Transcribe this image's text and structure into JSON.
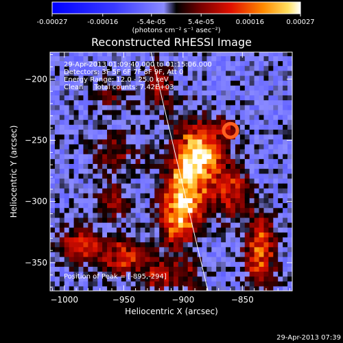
{
  "chart_data": {
    "type": "heatmap",
    "title": "Reconstructed RHESSI Image",
    "xlabel": "Heliocentric X (arcsec)",
    "ylabel": "Heliocentric Y (arcsec)",
    "xlim": [
      -1012,
      -808
    ],
    "ylim": [
      -373,
      -178
    ],
    "x_ticks": [
      -1000,
      -950,
      -900,
      -850
    ],
    "y_ticks": [
      -200,
      -250,
      -300,
      -350
    ],
    "colorbar": {
      "min": -0.00027,
      "max": 0.00027,
      "tick_values": [
        -0.00027,
        -0.00016,
        -5.4e-05,
        5.4e-05,
        0.00016,
        0.00027
      ],
      "tick_labels": [
        "-0.00027",
        "-0.00016",
        "-5.4e-05",
        "5.4e-05",
        "0.00016",
        "0.00027"
      ],
      "units_label": "(photons cm⁻² s⁻¹ asec⁻²)"
    },
    "annotations": [
      "29-Apr-2013 01:09:40.000 to 01:15:06.000",
      "Detectors: 3F 5F 6F 7F 8F 9F, Att 0",
      "Energy Range: 12.0 - 25.0 keV",
      "Clean     Total counts: 7.42E+03"
    ],
    "peak_label": "Position of Peak = [-895,-294]",
    "peak": [
      -895,
      -294
    ],
    "limb_line": [
      [
        -927,
        -178
      ],
      [
        -879,
        -373
      ]
    ],
    "hot_regions": [
      {
        "x": -893,
        "y": -275,
        "sx": 12,
        "sy": 25,
        "amp": 0.00027
      },
      {
        "x": -905,
        "y": -310,
        "sx": 10,
        "sy": 18,
        "amp": 0.00022
      },
      {
        "x": -880,
        "y": -260,
        "sx": 10,
        "sy": 12,
        "amp": 0.00018
      },
      {
        "x": -860,
        "y": -290,
        "sx": 10,
        "sy": 15,
        "amp": 0.00015
      },
      {
        "x": -835,
        "y": -340,
        "sx": 9,
        "sy": 20,
        "amp": 0.0002
      },
      {
        "x": -985,
        "y": -335,
        "sx": 12,
        "sy": 10,
        "amp": 0.00016
      },
      {
        "x": -950,
        "y": -345,
        "sx": 12,
        "sy": 10,
        "amp": 0.00017
      },
      {
        "x": -920,
        "y": -360,
        "sx": 10,
        "sy": 10,
        "amp": 0.00012
      },
      {
        "x": -955,
        "y": -260,
        "sx": 15,
        "sy": 12,
        "amp": 8e-05
      },
      {
        "x": -960,
        "y": -210,
        "sx": 10,
        "sy": 10,
        "amp": 7e-05
      },
      {
        "x": -920,
        "y": -205,
        "sx": 8,
        "sy": 12,
        "amp": 0.00012
      },
      {
        "x": -865,
        "y": -240,
        "sx": 6,
        "sy": 6,
        "amp": 0.00013
      },
      {
        "x": -960,
        "y": -300,
        "sx": 12,
        "sy": 10,
        "amp": 9e-05
      },
      {
        "x": -895,
        "y": -360,
        "sx": 8,
        "sy": 10,
        "amp": 0.0001
      }
    ]
  },
  "footer": {
    "timestamp": "29-Apr-2013 07:39"
  }
}
